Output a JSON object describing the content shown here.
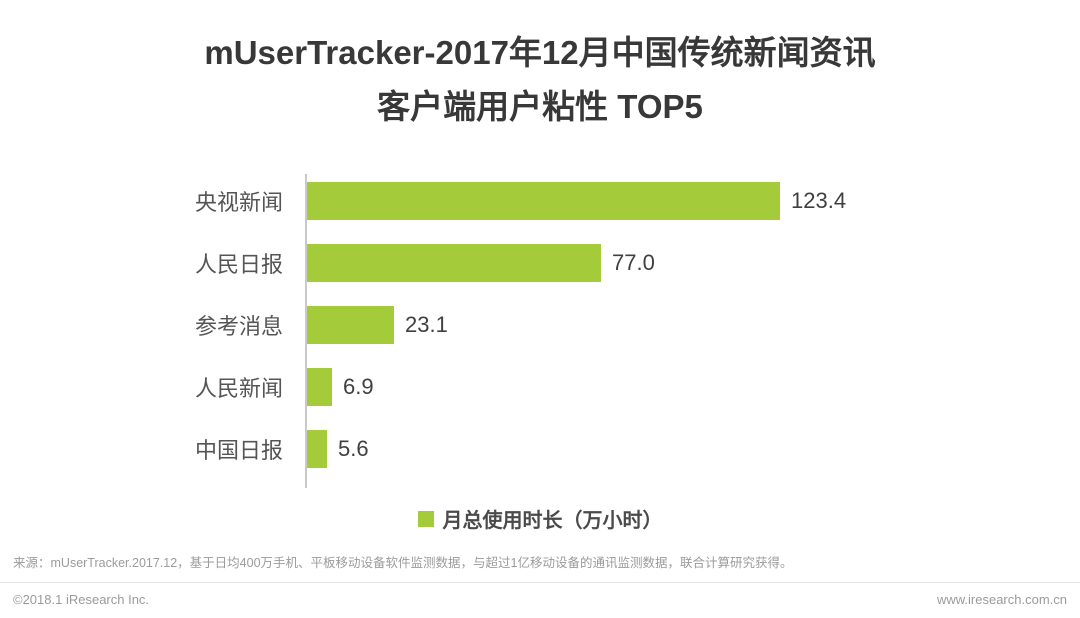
{
  "title": {
    "line1": "mUserTracker-2017年12月中国传统新闻资讯",
    "line2": "客户端用户粘性  TOP5"
  },
  "chart_data": {
    "type": "bar",
    "orientation": "horizontal",
    "title": "mUserTracker-2017年12月中国传统新闻资讯客户端用户粘性 TOP5",
    "categories": [
      "央视新闻",
      "人民日报",
      "参考消息",
      "人民新闻",
      "中国日报"
    ],
    "values": [
      123.4,
      77.0,
      23.1,
      6.9,
      5.6
    ],
    "value_labels": [
      "123.4",
      "77.0",
      "23.1",
      "6.9",
      "5.6"
    ],
    "legend": "月总使用时长（万小时）",
    "legend_position": "bottom",
    "bar_color": "#a3cb3a",
    "xlim": [
      0,
      130
    ],
    "grid": false,
    "xlabel": "",
    "ylabel": ""
  },
  "source": "来源：mUserTracker.2017.12，基于日均400万手机、平板移动设备软件监测数据，与超过1亿移动设备的通讯监测数据，联合计算研究获得。",
  "footer": {
    "left": "©2018.1 iResearch Inc.",
    "right": "www.iresearch.com.cn"
  }
}
